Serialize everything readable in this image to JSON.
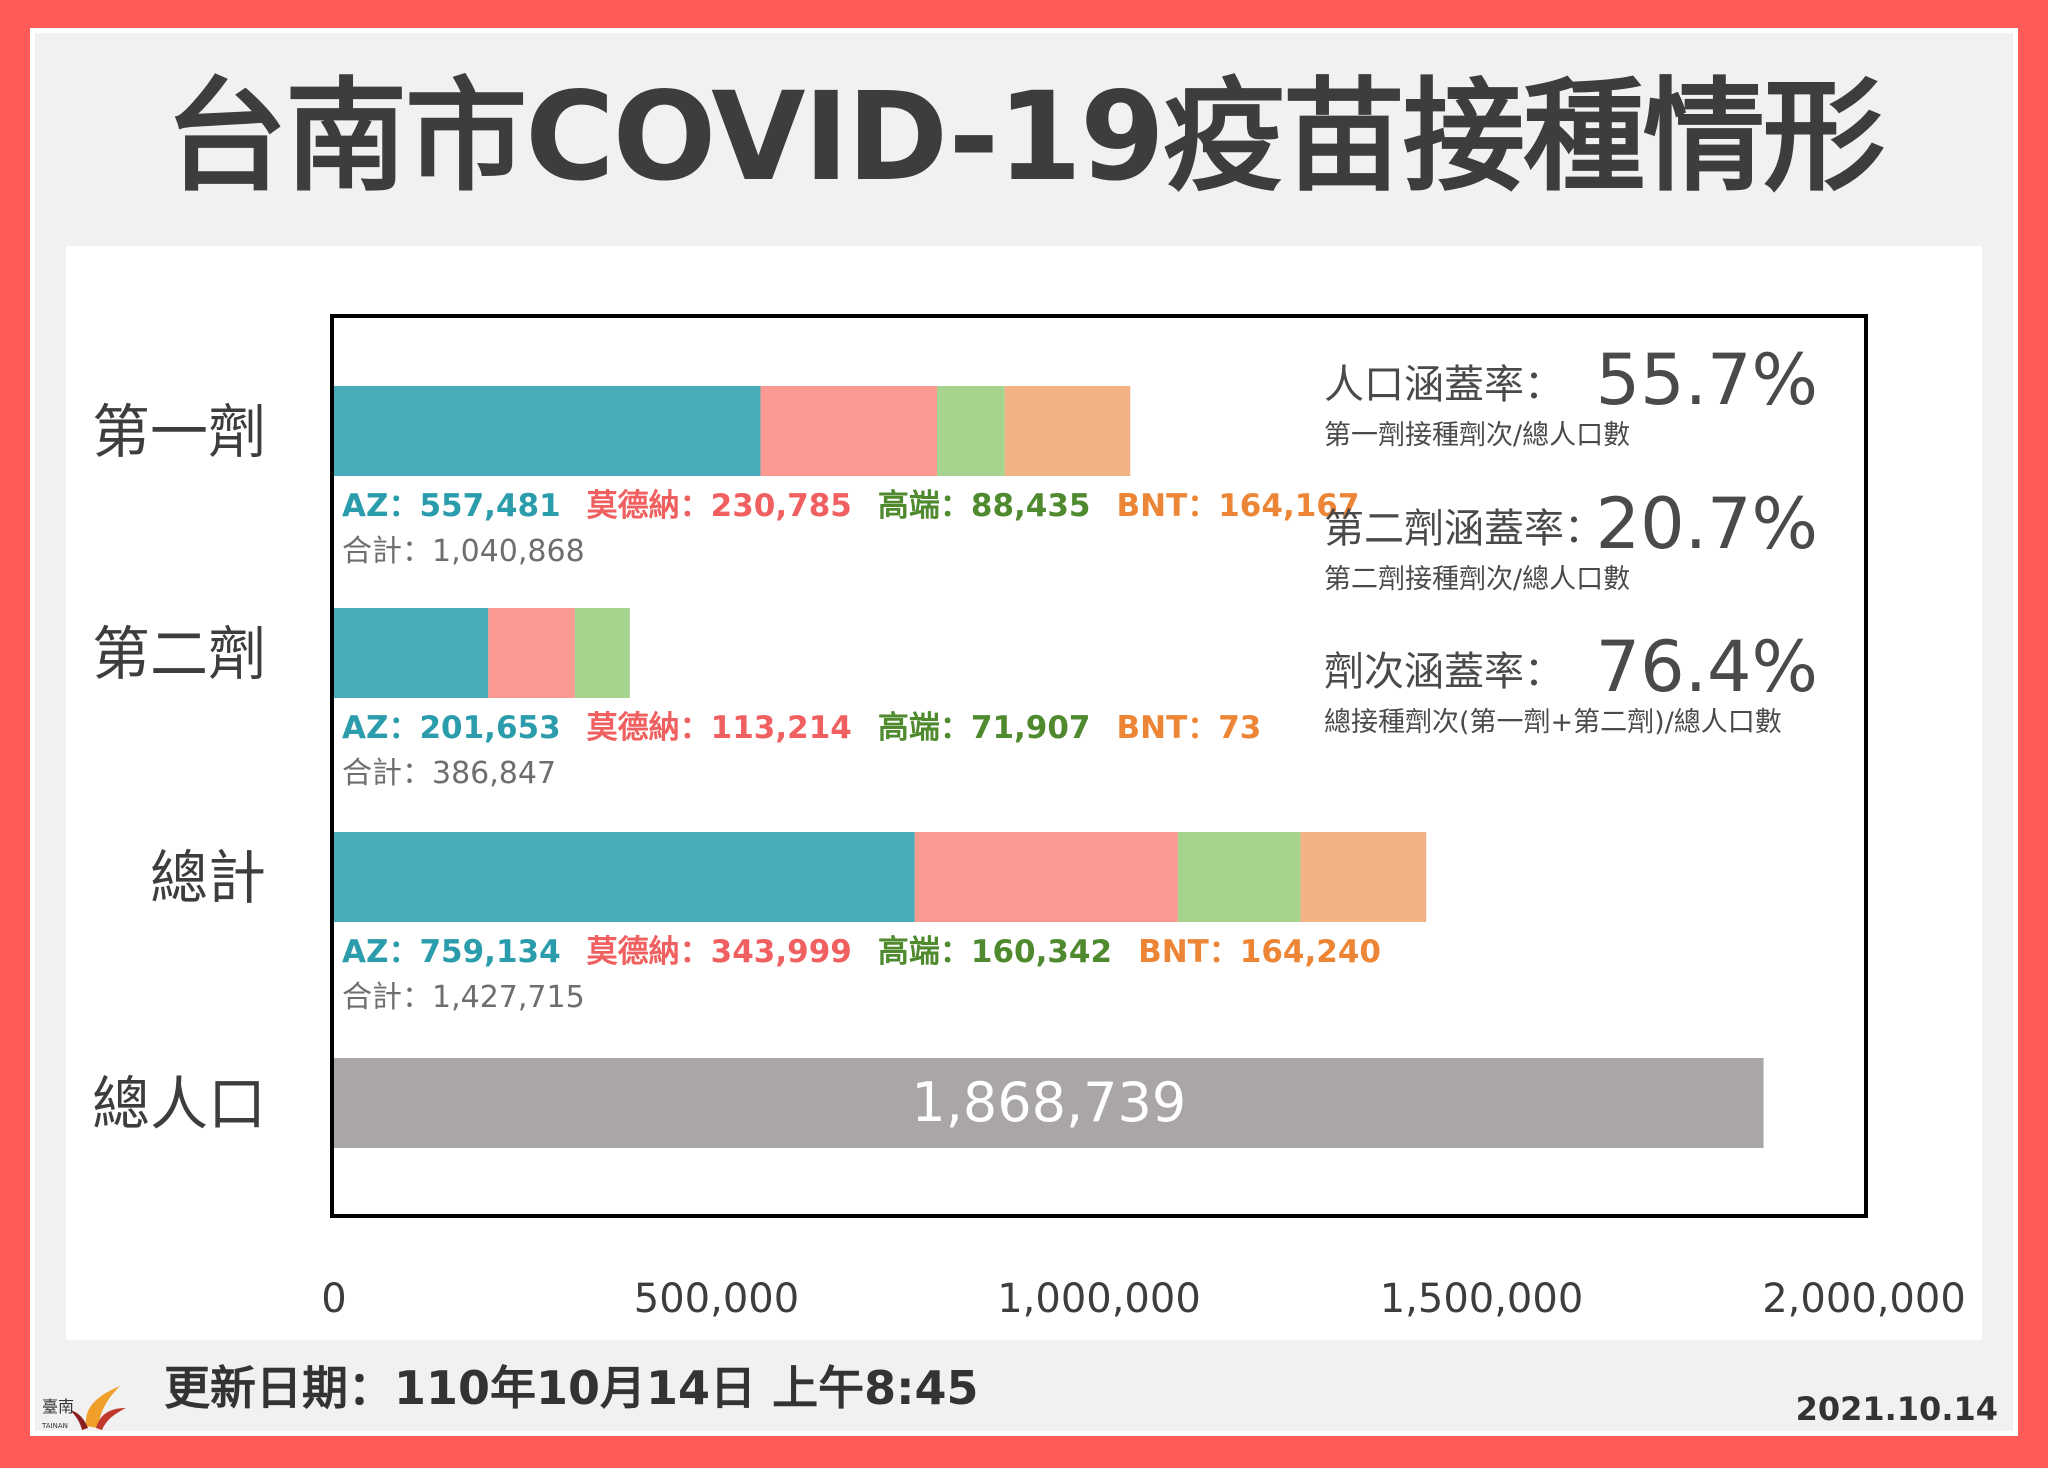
{
  "title": "台南市COVID-19疫苗接種情形",
  "footer": {
    "update_text": "更新日期：110年10月14日 上午8:45",
    "stamp": "2021.10.14",
    "logo_text": "臺南",
    "logo_sub": "TAINAN"
  },
  "colors": {
    "AZ": "#47abb9",
    "moderna": "#fb9a92",
    "medigen": "#a6d48e",
    "BNT": "#f3b286",
    "population": "#aaa6a6",
    "AZ_text": "#2a9cab",
    "moderna_text": "#f06060",
    "medigen_text": "#4f8a2f",
    "BNT_text": "#ec8636"
  },
  "chart_data": {
    "type": "bar",
    "orientation": "horizontal",
    "stacked": true,
    "categories": [
      "第一劑",
      "第二劑",
      "總計",
      "總人口"
    ],
    "series": [
      {
        "name": "AZ",
        "values": [
          557481,
          201653,
          759134,
          null
        ]
      },
      {
        "name": "莫德納",
        "values": [
          230785,
          113214,
          343999,
          null
        ]
      },
      {
        "name": "高端",
        "values": [
          88435,
          71907,
          160342,
          null
        ]
      },
      {
        "name": "BNT",
        "values": [
          164167,
          73,
          164240,
          null
        ]
      },
      {
        "name": "",
        "values": [
          null,
          null,
          null,
          1868739
        ]
      }
    ],
    "segment_labels": [
      [
        "AZ：557,481",
        "莫德納：230,785",
        "高端：88,435",
        "BNT：164,167"
      ],
      [
        "AZ：201,653",
        "莫德納：113,214",
        "高端：71,907",
        "BNT：73"
      ],
      [
        "AZ：759,134",
        "莫德納：343,999",
        "高端：160,342",
        "BNT：164,240"
      ]
    ],
    "sum_labels": [
      "合計：1,040,868",
      "合計：386,847",
      "合計：1,427,715"
    ],
    "population_label": "1,868,739",
    "xlim": [
      0,
      2000000
    ],
    "xticks": [
      0,
      500000,
      1000000,
      1500000,
      2000000
    ],
    "xtick_labels": [
      "0",
      "500,000",
      "1,000,000",
      "1,500,000",
      "2,000,000"
    ],
    "grid": false,
    "coverage": [
      {
        "label": "人口涵蓋率：",
        "value": "55.7%",
        "note": "第一劑接種劑次/總人口數"
      },
      {
        "label": "第二劑涵蓋率：",
        "value": "20.7%",
        "note": "第二劑接種劑次/總人口數"
      },
      {
        "label": "劑次涵蓋率：",
        "value": "76.4%",
        "note": "總接種劑次(第一劑+第二劑)/總人口數"
      }
    ]
  }
}
